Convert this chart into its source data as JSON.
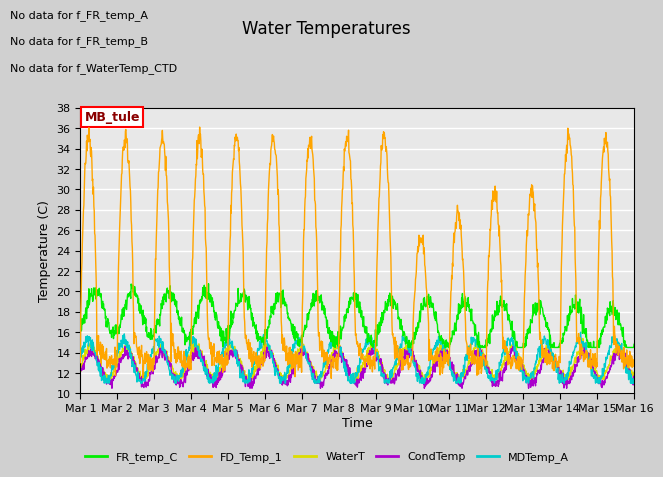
{
  "title": "Water Temperatures",
  "ylabel": "Temperature (C)",
  "xlabel": "Time",
  "ylim": [
    10,
    38
  ],
  "xlim": [
    0,
    15
  ],
  "annotations": [
    "No data for f_FR_temp_A",
    "No data for f_FR_temp_B",
    "No data for f_WaterTemp_CTD"
  ],
  "mb_tule_label": "MB_tule",
  "xtick_labels": [
    "Mar 1",
    "Mar 2",
    "Mar 3",
    "Mar 4",
    "Mar 5",
    "Mar 6",
    "Mar 7",
    "Mar 8",
    "Mar 9",
    "Mar 10",
    "Mar 11",
    "Mar 12",
    "Mar 13",
    "Mar 14",
    "Mar 15",
    "Mar 16"
  ],
  "legend": [
    {
      "label": "FR_temp_C",
      "color": "#00ee00"
    },
    {
      "label": "FD_Temp_1",
      "color": "#ffa500"
    },
    {
      "label": "WaterT",
      "color": "#dddd00"
    },
    {
      "label": "CondTemp",
      "color": "#aa00cc"
    },
    {
      "label": "MDTemp_A",
      "color": "#00cccc"
    }
  ],
  "title_fontsize": 12,
  "axis_fontsize": 9,
  "tick_fontsize": 8,
  "ann_fontsize": 8
}
